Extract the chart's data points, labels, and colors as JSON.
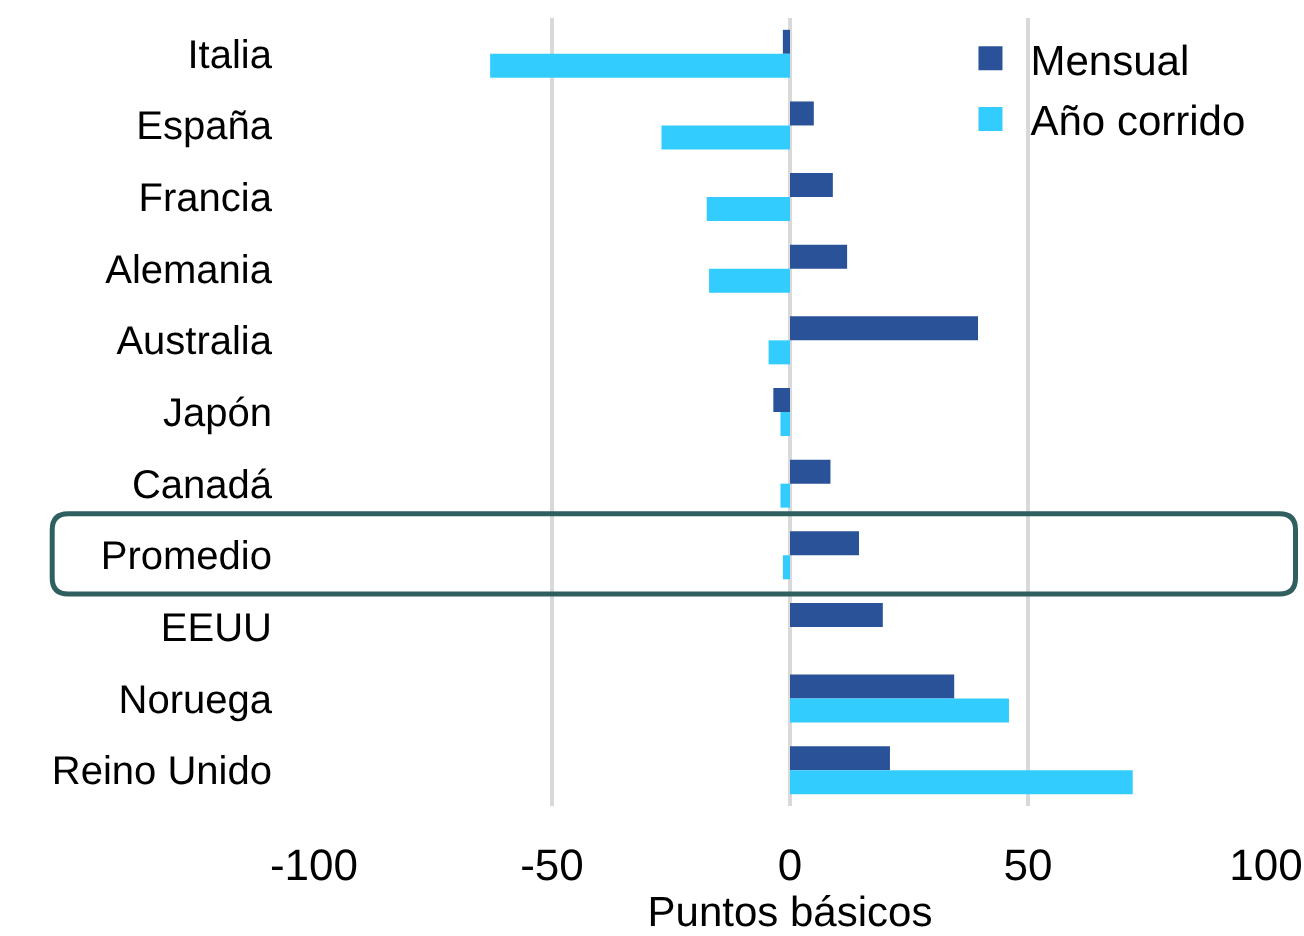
{
  "chart_data": {
    "type": "bar",
    "orientation": "horizontal",
    "xlabel": "Puntos básicos",
    "categories": [
      "Italia",
      "España",
      "Francia",
      "Alemania",
      "Australia",
      "Japón",
      "Canadá",
      "Promedio",
      "EEUU",
      "Noruega",
      "Reino Unido"
    ],
    "series": [
      {
        "name": "Mensual",
        "color": "#2a5298",
        "values": [
          -1.5,
          5,
          9,
          12,
          39.5,
          -3.5,
          8.5,
          14.5,
          19.5,
          34.5,
          21
        ]
      },
      {
        "name": "Año corrido",
        "color": "#33ccff",
        "values": [
          -63,
          -27,
          -17.5,
          -17,
          -4.5,
          -2,
          -2,
          -1.5,
          null,
          46,
          72
        ]
      }
    ],
    "xlim": [
      -100,
      100
    ],
    "xticks": [
      -100,
      -50,
      0,
      50,
      100
    ],
    "grid": "x",
    "legend": "top right"
  }
}
